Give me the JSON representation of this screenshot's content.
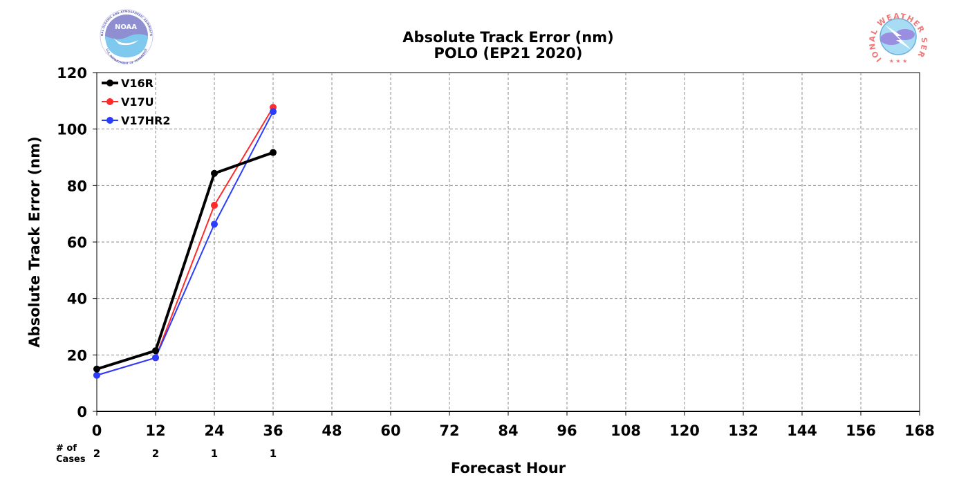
{
  "chart_data": {
    "type": "line",
    "title": "Absolute Track Error (nm)",
    "subtitle": "POLO (EP21 2020)",
    "xlabel": "Forecast Hour",
    "ylabel": "Absolute Track Error (nm)",
    "xlim": [
      0,
      168
    ],
    "ylim": [
      0,
      120
    ],
    "xticks": [
      0,
      12,
      24,
      36,
      48,
      60,
      72,
      84,
      96,
      108,
      120,
      132,
      144,
      156,
      168
    ],
    "yticks": [
      0,
      20,
      40,
      60,
      80,
      100,
      120
    ],
    "grid": true,
    "legend_position": "top-left",
    "series": [
      {
        "name": "V16R",
        "color": "#000000",
        "width": 4,
        "x": [
          0,
          12,
          24,
          36
        ],
        "values": [
          15.0,
          21.5,
          84.3,
          91.7
        ]
      },
      {
        "name": "V17U",
        "color": "#ff2a2a",
        "width": 2,
        "x": [
          0,
          12,
          24,
          36
        ],
        "values": [
          12.8,
          19.0,
          73.0,
          107.7
        ]
      },
      {
        "name": "V17HR2",
        "color": "#2a3cff",
        "width": 2,
        "x": [
          0,
          12,
          24,
          36
        ],
        "values": [
          12.8,
          19.0,
          66.3,
          106.2
        ]
      }
    ],
    "cases": {
      "label_line1": "# of",
      "label_line2": "Cases",
      "x": [
        0,
        12,
        24,
        36
      ],
      "values": [
        "2",
        "2",
        "1",
        "1"
      ]
    }
  },
  "logos": {
    "noaa": {
      "text": "NOAA",
      "ring_text": "NATIONAL OCEANIC AND ATMOSPHERIC ADMINISTRATION",
      "bottom_text": "U.S. DEPARTMENT OF COMMERCE",
      "color": "#8e8ed0",
      "wave_color": "#7fc8ee"
    },
    "nws": {
      "ring_text": "NATIONAL WEATHER SERVICE",
      "color": "#f07878",
      "cloud_color": "#9a8ee0",
      "sky_color": "#a8dcf5"
    }
  }
}
